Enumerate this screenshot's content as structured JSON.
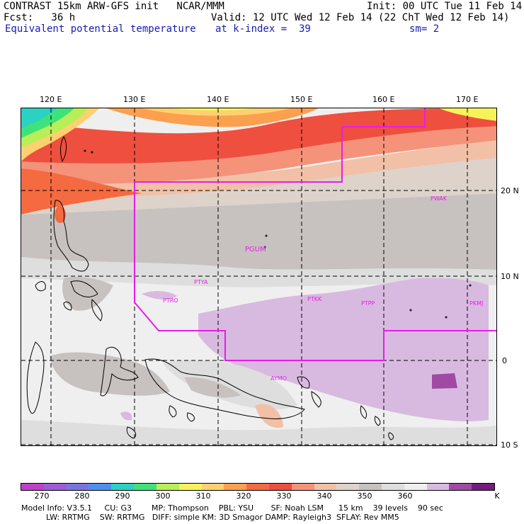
{
  "header": {
    "line1_left": "CONTRAST 15km ARW-GFS init   NCAR/MMM",
    "line1_right": "Init: 00 UTC Tue 11 Feb 14",
    "line2_left": "Fcst:   36 h",
    "line2_right": "Valid: 12 UTC Wed 12 Feb 14 (22 ChT Wed 12 Feb 14)",
    "line3_left": "Equivalent potential temperature",
    "line3_mid": "at k-index =  39",
    "line3_right": "sm= 2"
  },
  "axes": {
    "lon_labels": [
      "120 E",
      "130 E",
      "140 E",
      "150 E",
      "160 E",
      "170 E"
    ],
    "lat_labels": [
      "20 N",
      "10 N",
      "0",
      "10 S"
    ]
  },
  "stations": [
    "PWAK",
    "PGUM",
    "PTYA",
    "PTRO",
    "PTKK",
    "PTPP",
    "PKMJ",
    "AYMO"
  ],
  "colorbar": {
    "labels": [
      "270",
      "280",
      "290",
      "300",
      "310",
      "320",
      "330",
      "340",
      "350",
      "360",
      "K"
    ],
    "colors": [
      "#c040c8",
      "#9e5cd8",
      "#7b74e0",
      "#4f8ff0",
      "#2bd1c2",
      "#3ee27a",
      "#b8ee58",
      "#f6f35a",
      "#fdd070",
      "#fba04e",
      "#f56a40",
      "#ef4f3e",
      "#f5927a",
      "#f2c0a6",
      "#ddd3cb",
      "#c7c2bf",
      "#dedede",
      "#efefef",
      "#d8bae0",
      "#a04aa4",
      "#721c7c"
    ]
  },
  "model_info": {
    "line1": "Model Info: V3.5.1     CU: G3        MP: Thompson    PBL: YSU       SF: Noah LSM      15 km    39 levels    90 sec",
    "line2": "          LW: RRTMG    SW: RRTMG   DIFF: simple KM: 3D Smagor DAMP: Rayleigh3  SFLAY: Rev MM5"
  }
}
